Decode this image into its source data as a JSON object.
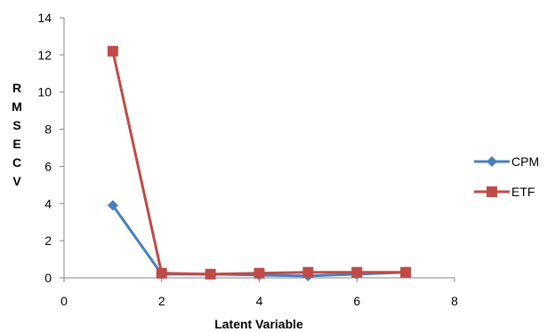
{
  "chart_data": {
    "type": "line",
    "title": "",
    "xlabel": "Latent Variable",
    "ylabel": "RMSECV",
    "ylabel_letters": [
      "R",
      "M",
      "S",
      "E",
      "C",
      "V"
    ],
    "xlim": [
      0,
      8
    ],
    "ylim": [
      0,
      14
    ],
    "xticks": [
      0,
      2,
      4,
      6,
      8
    ],
    "yticks": [
      0,
      2,
      4,
      6,
      8,
      10,
      12,
      14
    ],
    "grid": false,
    "legend_position": "right",
    "series": [
      {
        "name": "CPM",
        "color": "#4a7ebb",
        "marker": "diamond",
        "x": [
          1,
          2,
          3,
          4,
          5,
          6,
          7
        ],
        "y": [
          3.9,
          0.2,
          0.2,
          0.15,
          0.1,
          0.2,
          0.3
        ]
      },
      {
        "name": "ETF",
        "color": "#be4b48",
        "marker": "square",
        "x": [
          1,
          2,
          3,
          4,
          5,
          6,
          7
        ],
        "y": [
          12.2,
          0.25,
          0.2,
          0.25,
          0.3,
          0.3,
          0.3
        ]
      }
    ]
  }
}
